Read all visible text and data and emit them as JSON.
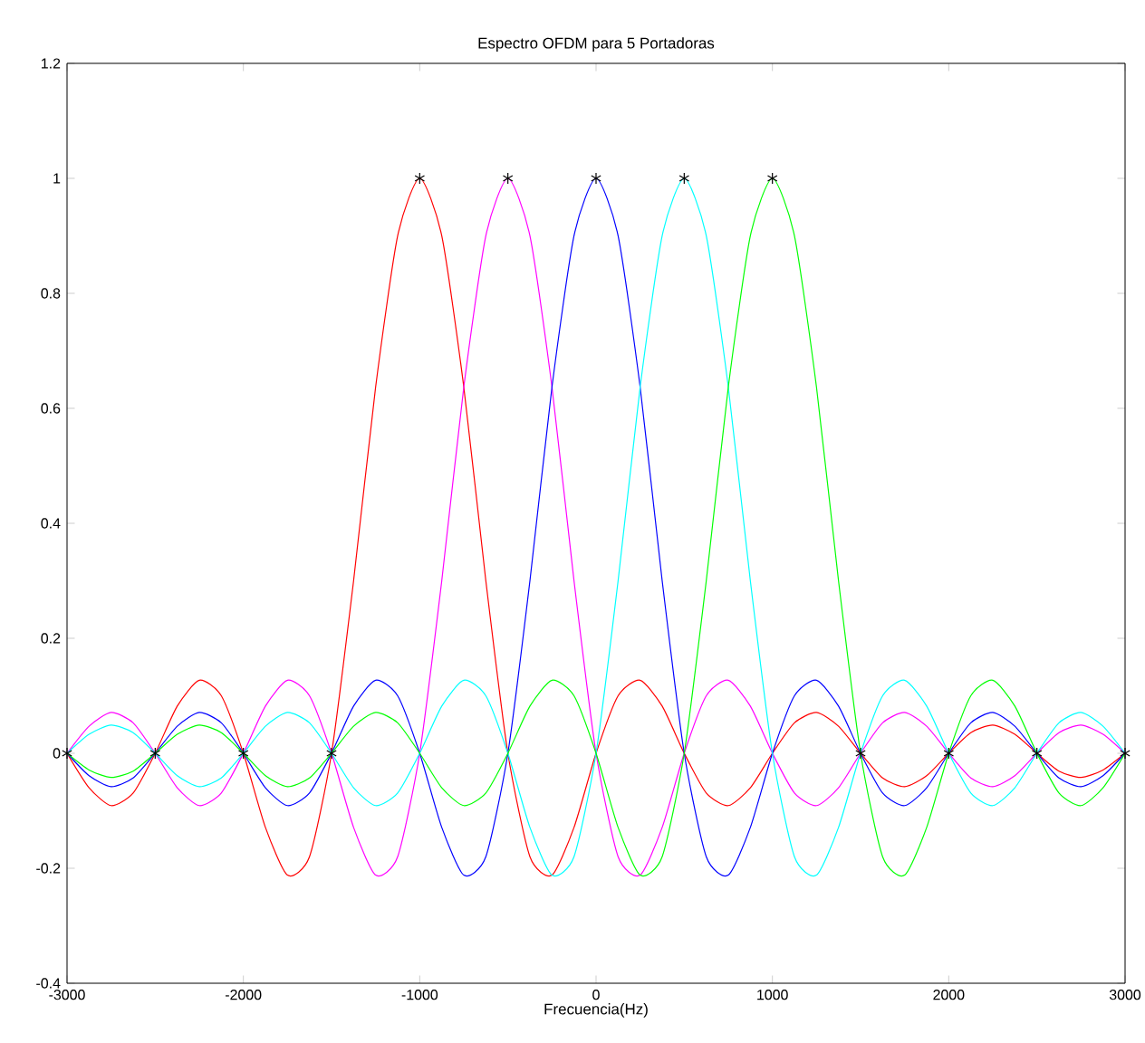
{
  "chart_data": {
    "type": "line",
    "title": "Espectro OFDM para 5 Portadoras",
    "xlabel": "Frecuencia(Hz)",
    "x": [
      -3000,
      -2875,
      -2750,
      -2625,
      -2500,
      -2375,
      -2250,
      -2125,
      -2000,
      -1875,
      -1750,
      -1625,
      -1500,
      -1375,
      -1250,
      -1125,
      -1000,
      -875,
      -750,
      -625,
      -500,
      -375,
      -250,
      -125,
      0,
      125,
      250,
      375,
      500,
      625,
      750,
      875,
      1000,
      1125,
      1250,
      1375,
      1500,
      1625,
      1750,
      1875,
      2000,
      2125,
      2250,
      2375,
      2500,
      2625,
      2750,
      2875,
      3000
    ],
    "series": [
      {
        "color": "#ff0000",
        "values": [
          0,
          -0.06,
          -0.091,
          -0.069,
          0,
          0.082,
          0.127,
          0.1,
          0,
          -0.129,
          -0.212,
          -0.18,
          0,
          0.3,
          0.637,
          0.9,
          1,
          0.9,
          0.637,
          0.3,
          0,
          -0.18,
          -0.212,
          -0.129,
          0,
          0.1,
          0.127,
          0.082,
          0,
          -0.069,
          -0.091,
          -0.06,
          0,
          0.053,
          0.071,
          0.047,
          0,
          -0.043,
          -0.058,
          -0.039,
          0,
          0.036,
          0.049,
          0.033,
          0,
          -0.031,
          -0.042,
          -0.029,
          0
        ]
      },
      {
        "color": "#ff00ff",
        "values": [
          0,
          0.047,
          0.071,
          0.053,
          0,
          -0.06,
          -0.091,
          -0.069,
          0,
          0.082,
          0.127,
          0.1,
          0,
          -0.129,
          -0.212,
          -0.18,
          0,
          0.3,
          0.637,
          0.9,
          1,
          0.9,
          0.637,
          0.3,
          0,
          -0.18,
          -0.212,
          -0.129,
          0,
          0.1,
          0.127,
          0.082,
          0,
          -0.069,
          -0.091,
          -0.06,
          0,
          0.053,
          0.071,
          0.047,
          0,
          -0.043,
          -0.058,
          -0.039,
          0,
          0.036,
          0.049,
          0.033,
          0
        ]
      },
      {
        "color": "#0000ff",
        "values": [
          0,
          -0.039,
          -0.058,
          -0.043,
          0,
          0.047,
          0.071,
          0.053,
          0,
          -0.06,
          -0.091,
          -0.069,
          0,
          0.082,
          0.127,
          0.1,
          0,
          -0.129,
          -0.212,
          -0.18,
          0,
          0.3,
          0.637,
          0.9,
          1,
          0.9,
          0.637,
          0.3,
          0,
          -0.18,
          -0.212,
          -0.129,
          0,
          0.1,
          0.127,
          0.082,
          0,
          -0.069,
          -0.091,
          -0.06,
          0,
          0.053,
          0.071,
          0.047,
          0,
          -0.043,
          -0.058,
          -0.039,
          0
        ]
      },
      {
        "color": "#00ffff",
        "values": [
          0,
          0.033,
          0.049,
          0.036,
          0,
          -0.039,
          -0.058,
          -0.043,
          0,
          0.047,
          0.071,
          0.053,
          0,
          -0.06,
          -0.091,
          -0.069,
          0,
          0.082,
          0.127,
          0.1,
          0,
          -0.129,
          -0.212,
          -0.18,
          0,
          0.3,
          0.637,
          0.9,
          1,
          0.9,
          0.637,
          0.3,
          0,
          -0.18,
          -0.212,
          -0.129,
          0,
          0.1,
          0.127,
          0.082,
          0,
          -0.069,
          -0.091,
          -0.06,
          0,
          0.053,
          0.071,
          0.047,
          0
        ]
      },
      {
        "color": "#00ff00",
        "values": [
          0,
          -0.029,
          -0.042,
          -0.031,
          0,
          0.033,
          0.049,
          0.036,
          0,
          -0.039,
          -0.058,
          -0.043,
          0,
          0.047,
          0.071,
          0.053,
          0,
          -0.06,
          -0.091,
          -0.069,
          0,
          0.082,
          0.127,
          0.1,
          0,
          -0.129,
          -0.212,
          -0.18,
          0,
          0.3,
          0.637,
          0.9,
          1,
          0.9,
          0.637,
          0.3,
          0,
          -0.18,
          -0.212,
          -0.129,
          0,
          0.1,
          0.127,
          0.082,
          0,
          -0.069,
          -0.091,
          -0.06,
          0
        ]
      },
      {
        "type": "scatter",
        "marker": "cross",
        "color": "#000000",
        "x": [
          -3000,
          -2500,
          -2000,
          -1500,
          -1000,
          -500,
          0,
          500,
          1000,
          1500,
          2000,
          2500,
          3000
        ],
        "values": [
          0,
          0,
          0,
          0,
          1,
          1,
          1,
          1,
          1,
          0,
          0,
          0,
          0
        ]
      }
    ],
    "xlim": [
      -3000,
      3000
    ],
    "ylim": [
      -0.4,
      1.2
    ],
    "xticks": [
      -3000,
      -2000,
      -1000,
      0,
      1000,
      2000,
      3000
    ],
    "yticks": [
      -0.4,
      -0.2,
      0,
      0.2,
      0.4,
      0.6,
      0.8,
      1,
      1.2
    ],
    "marker": "none",
    "line_style": "solid"
  }
}
